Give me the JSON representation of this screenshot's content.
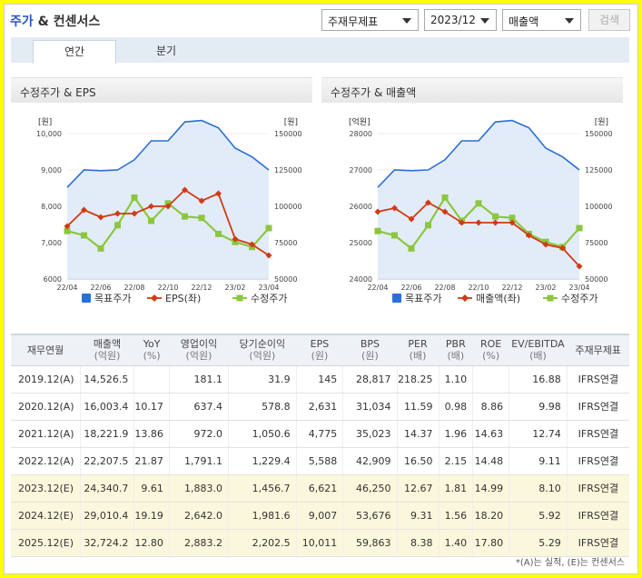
{
  "header": {
    "title_a": "주가",
    "title_b": " & 컨센서스"
  },
  "controls": {
    "subject": "주재무제표",
    "period": "2023/12",
    "metric": "매출액",
    "search": "검색"
  },
  "tabs": [
    "연간",
    "분기"
  ],
  "colors": {
    "target": "#2a6fd6",
    "eps": "#d03a14",
    "price": "#8cc63f",
    "area": "#dde9f8"
  },
  "chart_data": [
    {
      "type": "line",
      "title": "수정주가 & EPS",
      "left_unit": "[원]",
      "right_unit": "[원]",
      "x": [
        "22/04",
        "22/05",
        "22/06",
        "22/07",
        "22/08",
        "22/09",
        "22/10",
        "22/11",
        "22/12",
        "23/01",
        "23/02",
        "23/03",
        "23/04"
      ],
      "x_ticks": [
        "22/04",
        "22/06",
        "22/08",
        "22/10",
        "22/12",
        "23/02",
        "23/04"
      ],
      "left_axis": {
        "min": 6000,
        "max": 10000,
        "ticks": [
          "6000",
          "7,000",
          "8,000",
          "9,000",
          "10,000"
        ]
      },
      "right_axis": {
        "min": 50000,
        "max": 150000,
        "ticks": [
          "50000",
          "75000",
          "100000",
          "125000",
          "150000"
        ]
      },
      "series": [
        {
          "name": "목표주가",
          "axis": "right",
          "values": [
            113000,
            125000,
            124500,
            125000,
            132000,
            145000,
            145000,
            158000,
            159000,
            154000,
            140000,
            134000,
            125000
          ]
        },
        {
          "name": "EPS(좌)",
          "axis": "left",
          "values": [
            7450,
            7900,
            7700,
            7800,
            7800,
            8000,
            8000,
            8450,
            8150,
            8350,
            7100,
            6950,
            6650
          ]
        },
        {
          "name": "수정주가",
          "axis": "right",
          "values": [
            83000,
            80000,
            71000,
            87000,
            106000,
            90000,
            102000,
            93000,
            92000,
            81000,
            75500,
            72000,
            85000
          ]
        }
      ],
      "legend": "bottom"
    },
    {
      "type": "line",
      "title": "수정주가 & 매출액",
      "left_unit": "[억원]",
      "right_unit": "[원]",
      "x": [
        "22/04",
        "22/05",
        "22/06",
        "22/07",
        "22/08",
        "22/09",
        "22/10",
        "22/11",
        "22/12",
        "23/01",
        "23/02",
        "23/03",
        "23/04"
      ],
      "x_ticks": [
        "22/04",
        "22/06",
        "22/08",
        "22/10",
        "22/12",
        "23/02",
        "23/04"
      ],
      "left_axis": {
        "min": 24000,
        "max": 28000,
        "ticks": [
          "24000",
          "25000",
          "26000",
          "27000",
          "28000"
        ]
      },
      "right_axis": {
        "min": 50000,
        "max": 150000,
        "ticks": [
          "50000",
          "75000",
          "100000",
          "125000",
          "150000"
        ]
      },
      "series": [
        {
          "name": "목표주가",
          "axis": "right",
          "values": [
            113000,
            125000,
            124500,
            125000,
            132000,
            145000,
            145000,
            158000,
            159000,
            154000,
            140000,
            134000,
            125000
          ]
        },
        {
          "name": "매출액(좌)",
          "axis": "left",
          "values": [
            25850,
            25950,
            25650,
            26100,
            25850,
            25550,
            25550,
            25550,
            25550,
            25200,
            24950,
            24850,
            24350
          ]
        },
        {
          "name": "수정주가",
          "axis": "right",
          "values": [
            83000,
            80000,
            71000,
            87000,
            106000,
            90000,
            102000,
            93000,
            92000,
            81000,
            75500,
            72000,
            85000
          ]
        }
      ],
      "legend": "bottom"
    }
  ],
  "table": {
    "headers": [
      {
        "label": "재무연월",
        "sub": ""
      },
      {
        "label": "매출액",
        "sub": "(억원)"
      },
      {
        "label": "YoY",
        "sub": "(%)"
      },
      {
        "label": "영업이익",
        "sub": "(억원)"
      },
      {
        "label": "당기순이익",
        "sub": "(억원)"
      },
      {
        "label": "EPS",
        "sub": "(원)"
      },
      {
        "label": "BPS",
        "sub": "(원)"
      },
      {
        "label": "PER",
        "sub": "(배)"
      },
      {
        "label": "PBR",
        "sub": "(배)"
      },
      {
        "label": "ROE",
        "sub": "(%)"
      },
      {
        "label": "EV/EBITDA",
        "sub": "(배)"
      },
      {
        "label": "주재무제표",
        "sub": ""
      }
    ],
    "rows": [
      [
        "2019.12(A)",
        "14,526.5",
        "",
        "181.1",
        "31.9",
        "145",
        "28,817",
        "218.25",
        "1.10",
        "",
        "16.88",
        "IFRS연결"
      ],
      [
        "2020.12(A)",
        "16,003.4",
        "10.17",
        "637.4",
        "578.8",
        "2,631",
        "31,034",
        "11.59",
        "0.98",
        "8.86",
        "9.98",
        "IFRS연결"
      ],
      [
        "2021.12(A)",
        "18,221.9",
        "13.86",
        "972.0",
        "1,050.6",
        "4,775",
        "35,023",
        "14.37",
        "1.96",
        "14.63",
        "12.74",
        "IFRS연결"
      ],
      [
        "2022.12(A)",
        "22,207.5",
        "21.87",
        "1,791.1",
        "1,229.4",
        "5,588",
        "42,909",
        "16.50",
        "2.15",
        "14.48",
        "9.11",
        "IFRS연결"
      ],
      [
        "2023.12(E)",
        "24,340.7",
        "9.61",
        "1,883.0",
        "1,456.7",
        "6,621",
        "46,250",
        "12.67",
        "1.81",
        "14.99",
        "8.10",
        "IFRS연결"
      ],
      [
        "2024.12(E)",
        "29,010.4",
        "19.19",
        "2,642.0",
        "1,981.6",
        "9,007",
        "53,676",
        "9.31",
        "1.56",
        "18.20",
        "5.92",
        "IFRS연결"
      ],
      [
        "2025.12(E)",
        "32,724.2",
        "12.80",
        "2,883.2",
        "2,202.5",
        "10,011",
        "59,863",
        "8.38",
        "1.40",
        "17.80",
        "5.29",
        "IFRS연결"
      ]
    ],
    "estimate_rows": [
      4,
      5,
      6
    ]
  },
  "note": "*(A)는 실적, (E)는 컨센서스"
}
